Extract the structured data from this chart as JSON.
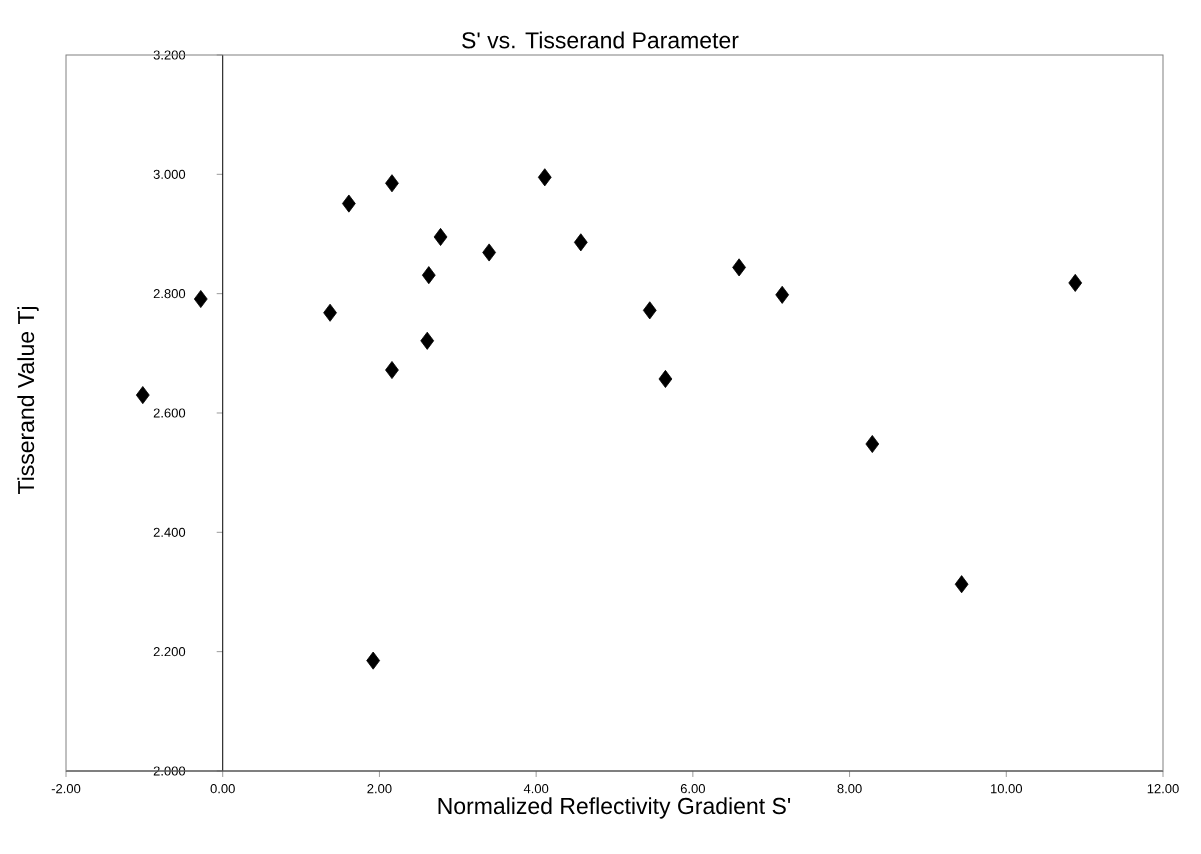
{
  "chart_data": {
    "type": "scatter",
    "title": "S' vs. Tisserand Parameter",
    "xlabel": "Normalized Reflectivity Gradient S'",
    "ylabel": "Tisserand Value Tj",
    "x": [
      -1.02,
      -0.28,
      1.37,
      1.61,
      2.16,
      2.16,
      2.61,
      2.63,
      2.78,
      3.4,
      4.11,
      4.57,
      6.59,
      7.14,
      5.45,
      5.65,
      8.29,
      10.88,
      1.92,
      9.43
    ],
    "values": [
      2.63,
      2.791,
      2.768,
      2.951,
      2.985,
      2.672,
      2.721,
      2.831,
      2.895,
      2.869,
      2.995,
      2.886,
      2.844,
      2.798,
      2.772,
      2.657,
      2.548,
      2.818,
      2.185,
      2.313
    ],
    "color": "#000000",
    "marker": "diamond",
    "xlim": [
      -2,
      12
    ],
    "xticks": [
      {
        "value": -2,
        "label": "-2.00"
      },
      {
        "value": 0,
        "label": "0.00"
      },
      {
        "value": 2,
        "label": "2.00"
      },
      {
        "value": 4,
        "label": "4.00"
      },
      {
        "value": 6,
        "label": "6.00"
      },
      {
        "value": 8,
        "label": "8.00"
      },
      {
        "value": 10,
        "label": "10.00"
      },
      {
        "value": 12,
        "label": "12.00"
      }
    ],
    "ylim": [
      2.0,
      3.2
    ],
    "yticks": [
      {
        "value": 2.0,
        "label": "2.000"
      },
      {
        "value": 2.2,
        "label": "2.200"
      },
      {
        "value": 2.4,
        "label": "2.400"
      },
      {
        "value": 2.6,
        "label": "2.600"
      },
      {
        "value": 2.8,
        "label": "2.800"
      },
      {
        "value": 3.0,
        "label": "3.000"
      },
      {
        "value": 3.2,
        "label": "3.200"
      }
    ]
  }
}
